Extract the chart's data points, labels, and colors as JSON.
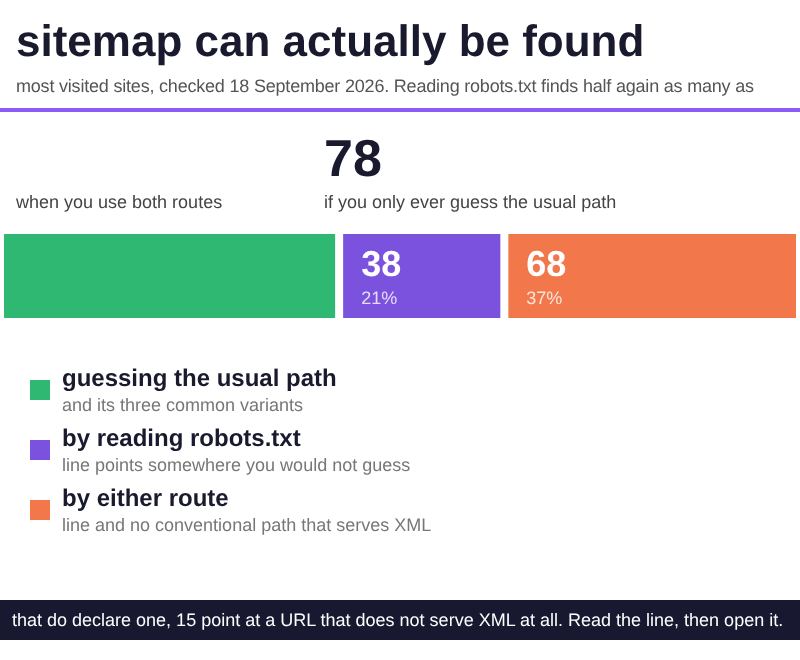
{
  "chart_data": {
    "type": "bar",
    "orientation": "horizontal",
    "stacked": true,
    "title": "sitemap can actually be found",
    "subtitle": "most visited sites, checked 18 September 2026. Reading robots.txt finds half again as many as",
    "categories": [
      null
    ],
    "series": [
      {
        "name": "guessing the usual path",
        "color": "#2eb872",
        "values": [
          78
        ],
        "value_labels": [
          null
        ]
      },
      {
        "name": "by reading robots.txt",
        "color": "#7b52de",
        "values": [
          38
        ],
        "value_labels": [
          "38\n21%"
        ]
      },
      {
        "name": "by either route",
        "color": "#f2784b",
        "values": [
          68
        ],
        "value_labels": [
          "68\n37%"
        ]
      }
    ],
    "xlim": [
      0,
      184
    ],
    "tick_labels": false,
    "legend": "bottom",
    "annotations": [
      "when you use both routes",
      "78",
      "if you only ever guess the usual path",
      "and its three common variants",
      "line points somewhere you would not guess",
      "line and no conventional path that serves XML",
      "that do declare one, 15 point at a URL that does not serve XML at all. Read the line, then open it."
    ]
  }
}
